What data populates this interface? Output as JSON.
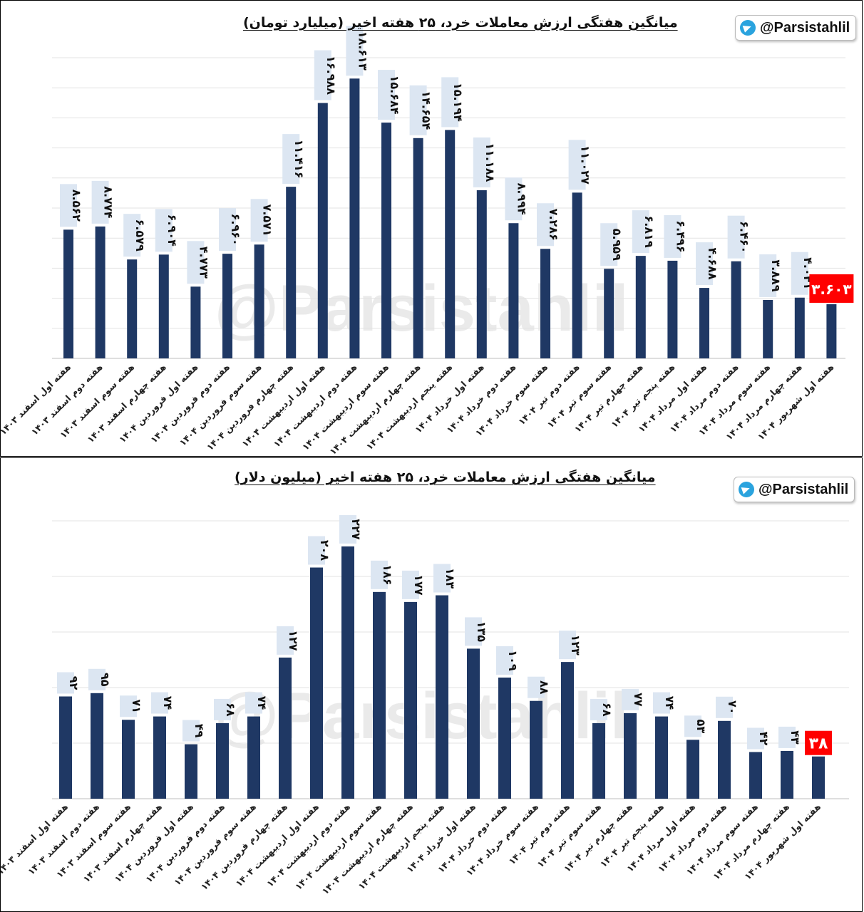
{
  "charts": [
    {
      "title": "میانگین هفتگی ارزش معاملات خرد، ۲۵ هفته اخیر (میلیارد تومان)",
      "handle": "@Parsistahlil",
      "watermark": "@Parsistahlil",
      "bar_color": "#1f3864",
      "label_bg": "#dce6f2",
      "highlight_color": "#ff0000"
    },
    {
      "title": "میانگین هفتگی ارزش معاملات خرد، ۲۵ هفته اخیر (میلیون دلار)",
      "handle": "@Parsistahlil",
      "watermark": "@Parsistahlil",
      "bar_color": "#1f3864",
      "label_bg": "#dce6f2",
      "highlight_color": "#ff0000"
    }
  ],
  "chart_data": [
    {
      "type": "bar",
      "title": "میانگین هفتگی ارزش معاملات خرد، ۲۵ هفته اخیر (میلیارد تومان)",
      "categories": [
        "هفته اول اسفند ۱۴۰۳",
        "هفته دوم اسفند ۱۴۰۳",
        "هفته سوم اسفند ۱۴۰۳",
        "هفته چهارم اسفند ۱۴۰۳",
        "هفته اول فروردین ۱۴۰۴",
        "هفته دوم فروردین ۱۴۰۴",
        "هفته سوم فروردین ۱۴۰۴",
        "هفته چهارم فروردین ۱۴۰۴",
        "هفته اول اردیبهشت ۱۴۰۴",
        "هفته دوم اردیبهشت ۱۴۰۴",
        "هفته سوم اردیبهشت ۱۴۰۴",
        "هفته چهارم اردیبهشت ۱۴۰۴",
        "هفته پنجم اردیبهشت ۱۴۰۴",
        "هفته اول خرداد ۱۴۰۴",
        "هفته دوم خرداد ۱۴۰۴",
        "هفته سوم خرداد ۱۴۰۴",
        "هفته دوم تیر ۱۴۰۴",
        "هفته سوم تیر ۱۴۰۴",
        "هفته چهارم تیر ۱۴۰۴",
        "هفته پنجم تیر ۱۴۰۴",
        "هفته اول مرداد ۱۴۰۴",
        "هفته دوم مرداد ۱۴۰۴",
        "هفته سوم مرداد ۱۴۰۴",
        "هفته چهارم مرداد ۱۴۰۴",
        "هفته اول شهریور ۱۴۰۴"
      ],
      "values": [
        8562,
        8774,
        6579,
        6904,
        4773,
        6960,
        7571,
        11416,
        16988,
        18613,
        15684,
        14654,
        15194,
        11188,
        8994,
        7286,
        11027,
        5959,
        6819,
        6496,
        4688,
        6460,
        3889,
        4041,
        3603
      ],
      "value_labels": [
        "۸.۵۶۲",
        "۸.۷۷۴",
        "۶.۵۷۹",
        "۶.۹۰۴",
        "۴.۷۷۳",
        "۶.۹۶۰",
        "۷.۵۷۱",
        "۱۱.۴۱۶",
        "۱۶.۹۸۸",
        "۱۸.۶۱۳",
        "۱۵.۶۸۴",
        "۱۴.۶۵۴",
        "۱۵.۱۹۴",
        "۱۱.۱۸۸",
        "۸.۹۹۴",
        "۷.۲۸۶",
        "۱۱.۰۲۷",
        "۵.۹۵۹",
        "۶.۸۱۹",
        "۶.۴۹۶",
        "۴.۶۸۸",
        "۶.۴۶۰",
        "۳.۸۸۹",
        "۴.۰۴۱",
        "۳.۶۰۳"
      ],
      "highlight_last": true,
      "ylim": [
        0,
        20000
      ],
      "grid": true,
      "xlabel": "",
      "ylabel": ""
    },
    {
      "type": "bar",
      "title": "میانگین هفتگی ارزش معاملات خرد، ۲۵ هفته اخیر (میلیون دلار)",
      "categories": [
        "هفته اول اسفند ۱۴۰۳",
        "هفته دوم اسفند ۱۴۰۳",
        "هفته سوم اسفند ۱۴۰۳",
        "هفته چهارم اسفند ۱۴۰۳",
        "هفته اول فروردین ۱۴۰۴",
        "هفته دوم فروردین ۱۴۰۴",
        "هفته سوم فروردین ۱۴۰۴",
        "هفته چهارم فروردین ۱۴۰۴",
        "هفته اول اردیبهشت ۱۴۰۴",
        "هفته دوم اردیبهشت ۱۴۰۴",
        "هفته سوم اردیبهشت ۱۴۰۴",
        "هفته چهارم اردیبهشت ۱۴۰۴",
        "هفته پنجم اردیبهشت ۱۴۰۴",
        "هفته اول خرداد ۱۴۰۴",
        "هفته دوم خرداد ۱۴۰۴",
        "هفته سوم خرداد ۱۴۰۴",
        "هفته دوم تیر ۱۴۰۴",
        "هفته سوم تیر ۱۴۰۴",
        "هفته چهارم تیر ۱۴۰۴",
        "هفته پنجم تیر ۱۴۰۴",
        "هفته اول مرداد ۱۴۰۴",
        "هفته دوم مرداد ۱۴۰۴",
        "هفته سوم مرداد ۱۴۰۴",
        "هفته چهارم مرداد ۱۴۰۴",
        "هفته اول شهریور ۱۴۰۴"
      ],
      "values": [
        92,
        95,
        71,
        74,
        49,
        68,
        74,
        127,
        208,
        227,
        186,
        177,
        183,
        135,
        109,
        88,
        123,
        68,
        77,
        74,
        53,
        70,
        42,
        43,
        38
      ],
      "value_labels": [
        "۹۲",
        "۹۵",
        "۷۱",
        "۷۴",
        "۴۹",
        "۶۸",
        "۷۴",
        "۱۲۷",
        "۲۰۸",
        "۲۲۷",
        "۱۸۶",
        "۱۷۷",
        "۱۸۳",
        "۱۳۵",
        "۱۰۹",
        "۸۸",
        "۱۲۳",
        "۶۸",
        "۷۷",
        "۷۴",
        "۵۳",
        "۷۰",
        "۴۲",
        "۴۳",
        "۳۸"
      ],
      "highlight_last": true,
      "ylim": [
        0,
        250
      ],
      "grid": true,
      "xlabel": "",
      "ylabel": ""
    }
  ]
}
